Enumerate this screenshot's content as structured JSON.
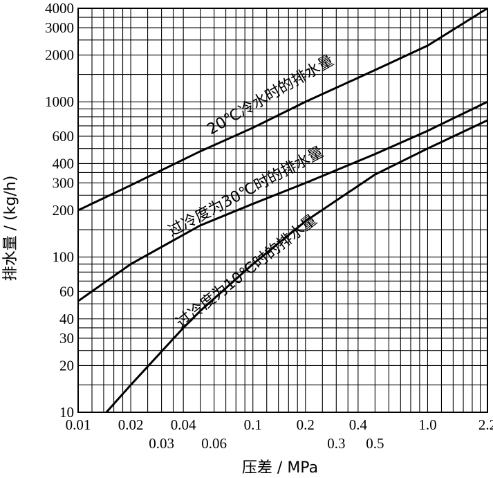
{
  "chart_data": {
    "type": "line",
    "xscale": "log",
    "yscale": "log",
    "xlim": [
      0.01,
      2.2
    ],
    "ylim": [
      10,
      4000
    ],
    "xlabel": "压差 / MPa",
    "ylabel": "排水量 / (kg/h)",
    "x_ticks_row1": [
      {
        "v": 0.01,
        "t": "0.01"
      },
      {
        "v": 0.02,
        "t": "0.02"
      },
      {
        "v": 0.04,
        "t": "0.04"
      },
      {
        "v": 0.1,
        "t": "0.1"
      },
      {
        "v": 0.2,
        "t": "0.2"
      },
      {
        "v": 0.4,
        "t": "0.4"
      },
      {
        "v": 1.0,
        "t": "1.0"
      },
      {
        "v": 2.2,
        "t": "2.2"
      }
    ],
    "x_ticks_row2": [
      {
        "v": 0.03,
        "t": "0.03"
      },
      {
        "v": 0.06,
        "t": "0.06"
      },
      {
        "v": 0.3,
        "t": "0.3"
      },
      {
        "v": 0.5,
        "t": "0.5"
      }
    ],
    "y_ticks": [
      {
        "v": 10,
        "t": "10"
      },
      {
        "v": 20,
        "t": "20"
      },
      {
        "v": 30,
        "t": "30"
      },
      {
        "v": 40,
        "t": "40"
      },
      {
        "v": 60,
        "t": "60"
      },
      {
        "v": 100,
        "t": "100"
      },
      {
        "v": 200,
        "t": "200"
      },
      {
        "v": 300,
        "t": "300"
      },
      {
        "v": 400,
        "t": "400"
      },
      {
        "v": 600,
        "t": "600"
      },
      {
        "v": 1000,
        "t": "1000"
      },
      {
        "v": 2000,
        "t": "2000"
      },
      {
        "v": 3000,
        "t": "3000"
      },
      {
        "v": 4000,
        "t": "4000"
      }
    ],
    "grid_x": [
      0.01,
      0.012,
      0.014,
      0.016,
      0.018,
      0.02,
      0.025,
      0.03,
      0.035,
      0.04,
      0.05,
      0.06,
      0.07,
      0.08,
      0.09,
      0.1,
      0.12,
      0.14,
      0.16,
      0.18,
      0.2,
      0.25,
      0.3,
      0.35,
      0.4,
      0.5,
      0.6,
      0.7,
      0.8,
      0.9,
      1.0,
      1.2,
      1.4,
      1.6,
      1.8,
      2.0,
      2.2
    ],
    "grid_y": [
      10,
      15,
      20,
      25,
      30,
      35,
      40,
      50,
      60,
      70,
      80,
      90,
      100,
      150,
      200,
      250,
      300,
      350,
      400,
      500,
      600,
      700,
      800,
      900,
      1000,
      1500,
      2000,
      2500,
      3000,
      3500,
      4000
    ],
    "series": [
      {
        "name": "20℃冷水时的排水量",
        "x": [
          0.01,
          0.02,
          0.05,
          0.1,
          0.2,
          0.5,
          1.0,
          2.2
        ],
        "y": [
          200,
          290,
          480,
          680,
          1000,
          1600,
          2300,
          4000
        ]
      },
      {
        "name": "过冷度为30℃时的排水量",
        "x": [
          0.01,
          0.02,
          0.05,
          0.1,
          0.2,
          0.5,
          1.0,
          2.2
        ],
        "y": [
          52,
          90,
          160,
          220,
          300,
          460,
          650,
          1000
        ]
      },
      {
        "name": "过冷度为10℃时的排水量",
        "x": [
          0.0145,
          0.02,
          0.04,
          0.05,
          0.1,
          0.2,
          0.5,
          1.0,
          2.2
        ],
        "y": [
          10,
          15,
          35,
          45,
          90,
          170,
          340,
          500,
          760
        ]
      }
    ],
    "grid": true,
    "legend": "none"
  }
}
